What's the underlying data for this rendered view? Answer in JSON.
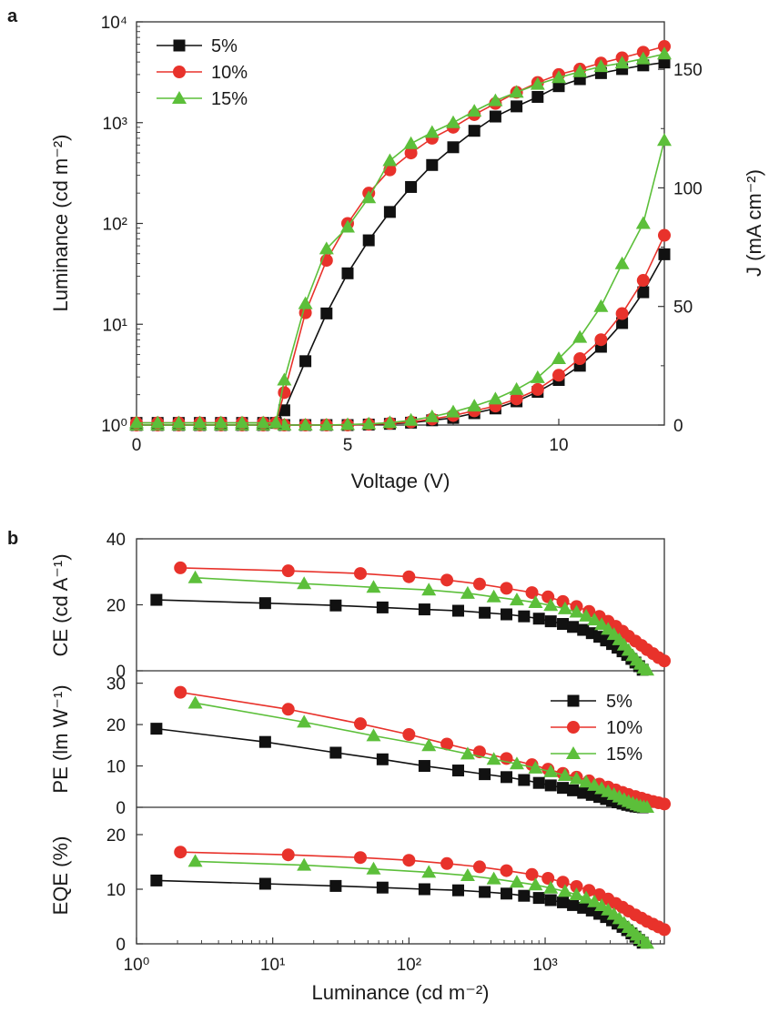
{
  "panels": {
    "a": "a",
    "b": "b"
  },
  "colors": {
    "5%": "#111111",
    "10%": "#e8322b",
    "15%": "#5cbf3a"
  },
  "legend": [
    "5%",
    "10%",
    "15%"
  ],
  "chart_data": [
    {
      "type": "line",
      "panel": "a",
      "xlabel": "Voltage (V)",
      "ylabel_left": "Luminance (cd m⁻²)",
      "ylabel_right": "J (mA cm⁻²)",
      "xlim": [
        0,
        12.5
      ],
      "ylim_left": [
        1,
        10000
      ],
      "yscale_left": "log",
      "ylim_right": [
        0,
        170
      ],
      "xticks": [
        "0",
        "5",
        "10"
      ],
      "yticks_left": [
        "10⁰",
        "10¹",
        "10²",
        "10³",
        "10⁴"
      ],
      "yticks_right": [
        "0",
        "50",
        "100",
        "150"
      ],
      "legend_position": "top-left",
      "luminance_series": [
        {
          "name": "5%",
          "marker": "square",
          "x": [
            0,
            0.5,
            1,
            1.5,
            2,
            2.5,
            3,
            3.3,
            3.5,
            4,
            4.5,
            5,
            5.5,
            6,
            6.5,
            7,
            7.5,
            8,
            8.5,
            9,
            9.5,
            10,
            10.5,
            11,
            11.5,
            12,
            12.5
          ],
          "y": [
            1.05,
            1.05,
            1.05,
            1.05,
            1.05,
            1.05,
            1.05,
            1.05,
            1.4,
            4.3,
            12.8,
            32,
            68,
            130,
            230,
            380,
            570,
            830,
            1150,
            1450,
            1800,
            2300,
            2700,
            3100,
            3400,
            3700,
            3950
          ]
        },
        {
          "name": "10%",
          "marker": "circle",
          "x": [
            0,
            0.5,
            1,
            1.5,
            2,
            2.5,
            3,
            3.3,
            3.5,
            4,
            4.5,
            5,
            5.5,
            6,
            6.5,
            7,
            7.5,
            8,
            8.5,
            9,
            9.5,
            10,
            10.5,
            11,
            11.5,
            12,
            12.5
          ],
          "y": [
            1.05,
            1.05,
            1.05,
            1.05,
            1.05,
            1.05,
            1.05,
            1.05,
            2.1,
            13,
            43,
            100,
            200,
            340,
            500,
            700,
            900,
            1200,
            1550,
            2000,
            2500,
            3000,
            3400,
            3900,
            4400,
            5000,
            5700
          ]
        },
        {
          "name": "15%",
          "marker": "triangle",
          "x": [
            0,
            0.5,
            1,
            1.5,
            2,
            2.5,
            3,
            3.3,
            3.5,
            4,
            4.5,
            5,
            5.5,
            6,
            6.5,
            7,
            7.5,
            8,
            8.5,
            9,
            9.5,
            10,
            10.5,
            11,
            11.5,
            12,
            12.5
          ],
          "y": [
            1.05,
            1.05,
            1.05,
            1.05,
            1.05,
            1.05,
            1.05,
            1.05,
            2.8,
            16,
            56,
            92,
            180,
            420,
            620,
            800,
            1000,
            1300,
            1650,
            2000,
            2400,
            2800,
            3200,
            3600,
            3900,
            4300,
            4800
          ]
        }
      ],
      "current_density_series": [
        {
          "name": "5%",
          "marker": "square",
          "x": [
            0,
            0.5,
            1,
            1.5,
            2,
            2.5,
            3,
            3.5,
            4,
            4.5,
            5,
            5.5,
            6,
            6.5,
            7,
            7.5,
            8,
            8.5,
            9,
            9.5,
            10,
            10.5,
            11,
            11.5,
            12,
            12.5
          ],
          "y": [
            0,
            0,
            0,
            0,
            0,
            0,
            0,
            0,
            0,
            0,
            0,
            0.2,
            0.5,
            1,
            2,
            3,
            5,
            7,
            10,
            14,
            19,
            25,
            33,
            43,
            56,
            72
          ]
        },
        {
          "name": "10%",
          "marker": "circle",
          "x": [
            0,
            0.5,
            1,
            1.5,
            2,
            2.5,
            3,
            3.5,
            4,
            4.5,
            5,
            5.5,
            6,
            6.5,
            7,
            7.5,
            8,
            8.5,
            9,
            9.5,
            10,
            10.5,
            11,
            11.5,
            12,
            12.5
          ],
          "y": [
            0,
            0,
            0,
            0,
            0,
            0,
            0,
            0,
            0,
            0,
            0,
            0.3,
            0.7,
            1.3,
            2.5,
            4,
            6,
            8,
            11,
            15,
            21,
            28,
            36,
            47,
            61,
            80
          ]
        },
        {
          "name": "15%",
          "marker": "triangle",
          "x": [
            0,
            0.5,
            1,
            1.5,
            2,
            2.5,
            3,
            3.5,
            4,
            4.5,
            5,
            5.5,
            6,
            6.5,
            7,
            7.5,
            8,
            8.5,
            9,
            9.5,
            10,
            10.5,
            11,
            11.5,
            12,
            12.5
          ],
          "y": [
            0,
            0,
            0,
            0,
            0,
            0,
            0,
            0,
            0,
            0,
            0.2,
            0.5,
            1,
            2,
            3.5,
            5.5,
            8,
            11,
            15,
            20,
            28,
            37,
            50,
            68,
            85,
            120
          ]
        }
      ]
    },
    {
      "type": "line",
      "panel": "b",
      "xlabel": "Luminance (cd m⁻²)",
      "xscale": "log",
      "xlim": [
        1,
        7500
      ],
      "xticks": [
        "10⁰",
        "10¹",
        "10²",
        "10³"
      ],
      "legend_position": "right of middle subplot",
      "subplots": [
        {
          "ylabel": "CE (cd A⁻¹)",
          "ylim": [
            0,
            40
          ],
          "yticks": [
            "0",
            "20",
            "40"
          ],
          "series": [
            {
              "name": "5%",
              "marker": "square",
              "x": [
                1.4,
                8.8,
                29,
                64,
                130,
                230,
                360,
                520,
                700,
                900,
                1100,
                1350,
                1600,
                1900,
                2200,
                2500,
                2800,
                3100,
                3400,
                3700,
                4000,
                4300,
                4600,
                4900,
                5200
              ],
              "y": [
                21.5,
                20.5,
                19.8,
                19.2,
                18.6,
                18.2,
                17.6,
                17.1,
                16.5,
                15.8,
                15,
                14.2,
                13.3,
                12.4,
                11.4,
                10.3,
                9.2,
                8.1,
                7,
                5.9,
                4.8,
                3.6,
                2.5,
                1.4,
                0.3
              ]
            },
            {
              "name": "10%",
              "marker": "circle",
              "x": [
                2.1,
                13,
                44,
                100,
                190,
                330,
                520,
                800,
                1050,
                1350,
                1700,
                2100,
                2500,
                2900,
                3300,
                3700,
                4100,
                4600,
                5100,
                5600,
                6200,
                6800,
                7500
              ],
              "y": [
                31.2,
                30.3,
                29.5,
                28.5,
                27.5,
                26.3,
                25,
                23.7,
                22.4,
                21,
                19.5,
                18,
                16.5,
                15,
                13.5,
                12,
                10.5,
                9,
                7.7,
                6.4,
                5.2,
                4,
                3
              ]
            },
            {
              "name": "15%",
              "marker": "triangle",
              "x": [
                2.7,
                17,
                55,
                140,
                270,
                420,
                620,
                850,
                1100,
                1400,
                1700,
                2000,
                2300,
                2600,
                2900,
                3200,
                3500,
                3800,
                4100,
                4400,
                4700,
                5000,
                5300,
                5600
              ],
              "y": [
                28.2,
                26.4,
                25.3,
                24.5,
                23.5,
                22.4,
                21.5,
                20.7,
                19.8,
                18.8,
                17.8,
                16.6,
                15.4,
                14,
                12.6,
                11,
                9.4,
                7.8,
                6.2,
                4.6,
                3.2,
                2,
                0.8,
                0.2
              ]
            }
          ]
        },
        {
          "ylabel": "PE (lm W⁻¹)",
          "ylim": [
            0,
            33
          ],
          "yticks": [
            "0",
            "10",
            "20",
            "30"
          ],
          "series": [
            {
              "name": "5%",
              "marker": "square",
              "x": [
                1.4,
                8.8,
                29,
                64,
                130,
                230,
                360,
                520,
                700,
                900,
                1100,
                1350,
                1600,
                1900,
                2200,
                2500,
                2800,
                3100,
                3400,
                3700,
                4000,
                4300,
                4600,
                4900,
                5200
              ],
              "y": [
                19,
                15.8,
                13.2,
                11.6,
                10,
                8.9,
                8,
                7.3,
                6.6,
                5.9,
                5.3,
                4.7,
                4.1,
                3.5,
                3,
                2.5,
                2,
                1.6,
                1.2,
                0.9,
                0.6,
                0.4,
                0.2,
                0.1,
                0
              ]
            },
            {
              "name": "10%",
              "marker": "circle",
              "x": [
                2.1,
                13,
                44,
                100,
                190,
                330,
                520,
                800,
                1050,
                1350,
                1700,
                2100,
                2500,
                2900,
                3300,
                3700,
                4100,
                4600,
                5100,
                5600,
                6200,
                6800,
                7500
              ],
              "y": [
                27.8,
                23.7,
                20.2,
                17.6,
                15.3,
                13.4,
                11.8,
                10.3,
                9.2,
                8.2,
                7.3,
                6.4,
                5.6,
                4.9,
                4.2,
                3.6,
                3.1,
                2.6,
                2.2,
                1.8,
                1.4,
                1.1,
                0.8
              ]
            },
            {
              "name": "15%",
              "marker": "triangle",
              "x": [
                2.7,
                17,
                55,
                140,
                270,
                420,
                620,
                850,
                1100,
                1400,
                1700,
                2000,
                2300,
                2600,
                2900,
                3200,
                3500,
                3800,
                4100,
                4400,
                4700,
                5000,
                5300,
                5600
              ],
              "y": [
                25.2,
                20.6,
                17.3,
                14.9,
                12.9,
                11.6,
                10.5,
                9.5,
                8.6,
                7.7,
                6.9,
                6.1,
                5.3,
                4.5,
                3.8,
                3.1,
                2.5,
                1.9,
                1.4,
                1,
                0.6,
                0.3,
                0.1,
                0
              ]
            }
          ]
        },
        {
          "ylabel": "EQE (%)",
          "ylim": [
            0,
            25
          ],
          "yticks": [
            "0",
            "10",
            "20"
          ],
          "series": [
            {
              "name": "5%",
              "marker": "square",
              "x": [
                1.4,
                8.8,
                29,
                64,
                130,
                230,
                360,
                520,
                700,
                900,
                1100,
                1350,
                1600,
                1900,
                2200,
                2500,
                2800,
                3100,
                3400,
                3700,
                4000,
                4300,
                4600,
                4900,
                5200
              ],
              "y": [
                11.6,
                11,
                10.6,
                10.3,
                10,
                9.8,
                9.5,
                9.2,
                8.8,
                8.4,
                8,
                7.6,
                7.1,
                6.6,
                6.1,
                5.5,
                4.9,
                4.3,
                3.7,
                3.1,
                2.5,
                1.9,
                1.3,
                0.7,
                0.2
              ]
            },
            {
              "name": "10%",
              "marker": "circle",
              "x": [
                2.1,
                13,
                44,
                100,
                190,
                330,
                520,
                800,
                1050,
                1350,
                1700,
                2100,
                2500,
                2900,
                3300,
                3700,
                4100,
                4600,
                5100,
                5600,
                6200,
                6800,
                7500
              ],
              "y": [
                16.8,
                16.3,
                15.8,
                15.3,
                14.7,
                14.1,
                13.4,
                12.7,
                12,
                11.3,
                10.5,
                9.8,
                9,
                8.2,
                7.4,
                6.7,
                6,
                5.3,
                4.7,
                4.1,
                3.6,
                3.1,
                2.6
              ]
            },
            {
              "name": "15%",
              "marker": "triangle",
              "x": [
                2.7,
                17,
                55,
                140,
                270,
                420,
                620,
                850,
                1100,
                1400,
                1700,
                2000,
                2300,
                2600,
                2900,
                3200,
                3500,
                3800,
                4100,
                4400,
                4700,
                5000,
                5300,
                5600
              ],
              "y": [
                15.1,
                14.4,
                13.7,
                13.1,
                12.5,
                11.9,
                11.3,
                10.8,
                10.2,
                9.6,
                9,
                8.4,
                7.7,
                7,
                6.2,
                5.4,
                4.6,
                3.8,
                3,
                2.3,
                1.6,
                1,
                0.5,
                0.1
              ]
            }
          ]
        }
      ]
    }
  ]
}
